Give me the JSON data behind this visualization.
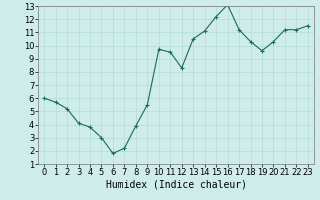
{
  "x": [
    0,
    1,
    2,
    3,
    4,
    5,
    6,
    7,
    8,
    9,
    10,
    11,
    12,
    13,
    14,
    15,
    16,
    17,
    18,
    19,
    20,
    21,
    22,
    23
  ],
  "y": [
    6.0,
    5.7,
    5.2,
    4.1,
    3.8,
    3.0,
    1.8,
    2.2,
    3.9,
    5.5,
    9.7,
    9.5,
    8.3,
    10.5,
    11.1,
    12.2,
    13.1,
    11.2,
    10.3,
    9.6,
    10.3,
    11.2,
    11.2,
    11.5
  ],
  "line_color": "#1a6b5e",
  "marker_color": "#1a6b5e",
  "bg_color": "#ceecea",
  "grid_color": "#aed8d4",
  "xlabel": "Humidex (Indice chaleur)",
  "ylim": [
    1,
    13
  ],
  "xlim": [
    -0.5,
    23.5
  ],
  "yticks": [
    1,
    2,
    3,
    4,
    5,
    6,
    7,
    8,
    9,
    10,
    11,
    12,
    13
  ],
  "xticks": [
    0,
    1,
    2,
    3,
    4,
    5,
    6,
    7,
    8,
    9,
    10,
    11,
    12,
    13,
    14,
    15,
    16,
    17,
    18,
    19,
    20,
    21,
    22,
    23
  ],
  "xlabel_fontsize": 7,
  "tick_fontsize": 6,
  "fig_width": 3.2,
  "fig_height": 2.0,
  "dpi": 100
}
